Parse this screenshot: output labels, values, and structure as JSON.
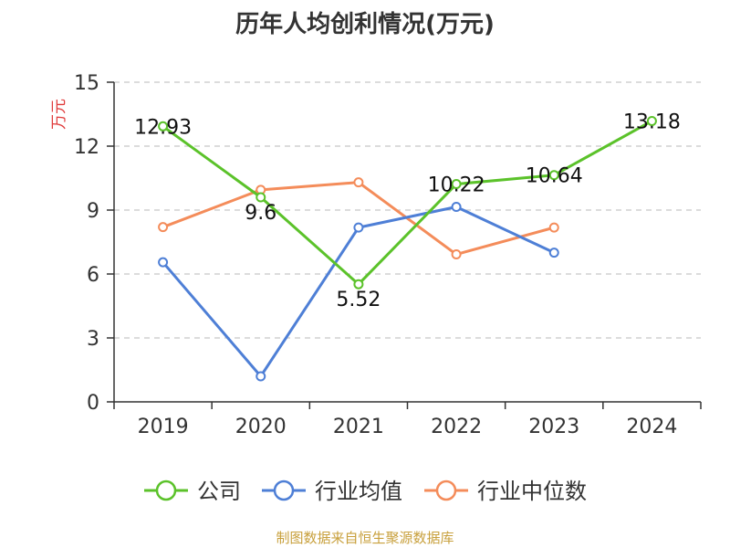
{
  "chart_data": {
    "type": "line",
    "title": "历年人均创利情况(万元)",
    "ylabel": "万元",
    "xlabel": "",
    "categories": [
      "2019",
      "2020",
      "2021",
      "2022",
      "2023",
      "2024"
    ],
    "ylim": [
      0,
      15
    ],
    "yticks": [
      "0",
      "3",
      "6",
      "9",
      "12",
      "15"
    ],
    "grid": "horizontal dashed",
    "legend_position": "bottom",
    "series": [
      {
        "name": "公司",
        "color": "#5bc22a",
        "values": [
          12.93,
          9.6,
          5.52,
          10.22,
          10.64,
          13.18
        ],
        "labels": [
          "12.93",
          "9.6",
          "5.52",
          "10.22",
          "10.64",
          "13.18"
        ]
      },
      {
        "name": "行业均值",
        "color": "#4e7fd6",
        "values": [
          6.55,
          1.2,
          8.18,
          9.15,
          7.0,
          null
        ]
      },
      {
        "name": "行业中位数",
        "color": "#f48c5a",
        "values": [
          8.2,
          9.95,
          10.3,
          6.92,
          8.18,
          null
        ]
      }
    ]
  },
  "source": "制图数据来自恒生聚源数据库"
}
